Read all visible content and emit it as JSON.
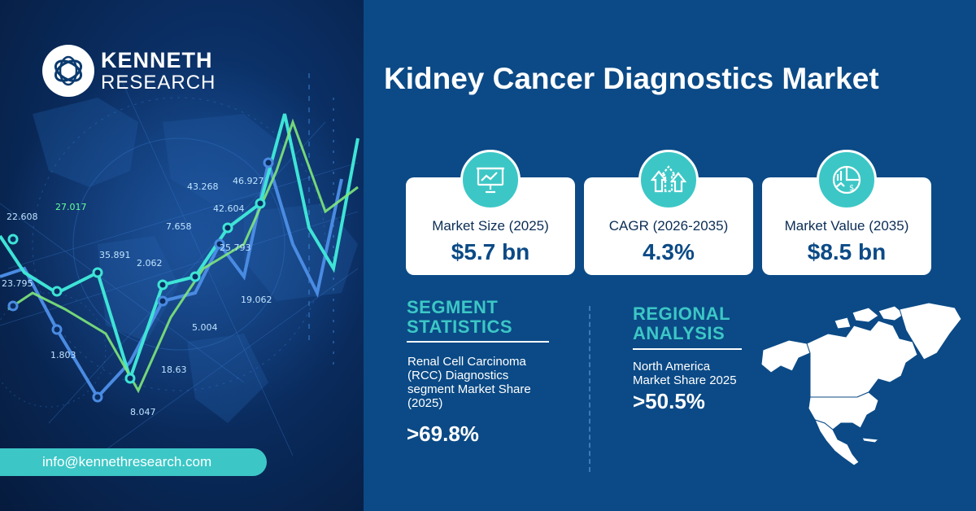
{
  "brand": {
    "line1": "KENNETH",
    "line2": "RESEARCH"
  },
  "contact": {
    "email": "info@kennethresearch.com"
  },
  "title": "Kidney Cancer Diagnostics Market",
  "cards": [
    {
      "label": "Market Size (2025)",
      "value": "$5.7 bn",
      "icon": "presentation-chart-icon"
    },
    {
      "label": "CAGR (2026-2035)",
      "value": "4.3%",
      "icon": "growth-arrows-icon"
    },
    {
      "label": "Market Value  (2035)",
      "value": "$8.5 bn",
      "icon": "value-chart-icon"
    }
  ],
  "segment": {
    "heading_line1": "SEGMENT",
    "heading_line2": "STATISTICS",
    "desc_lines": [
      "Renal Cell Carcinoma",
      "(RCC) Diagnostics",
      "segment Market Share",
      "(2025)"
    ],
    "value": ">69.8%"
  },
  "regional": {
    "heading_line1": "REGIONAL",
    "heading_line2": "ANALYSIS",
    "desc_lines": [
      "North America",
      "Market Share 2025"
    ],
    "value": ">50.5%"
  },
  "background_numbers": [
    "22.608",
    "27.017",
    "23.795",
    "35.891",
    "2.062",
    "7.658",
    "43.268",
    "46.927",
    "42.604",
    "25.793",
    "5.004",
    "1.803",
    "18.63",
    "8.047",
    "19.062"
  ],
  "colors": {
    "teal": "#3cc7c6",
    "navy": "#0b4a86",
    "white": "#ffffff"
  }
}
